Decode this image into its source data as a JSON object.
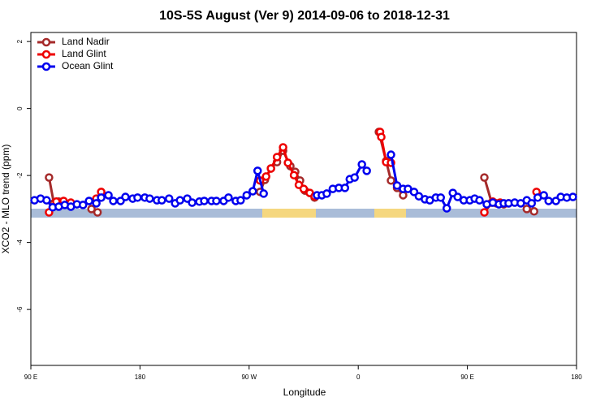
{
  "chart_data": {
    "type": "line",
    "title": "10S-5S August (Ver 9)   2014-09-06 to 2018-12-31",
    "x_label": "Longitude",
    "y_label": "XCO2 - MLO trend (ppm)",
    "xlim": [
      90,
      540
    ],
    "ylim": [
      -7.67,
      2.27
    ],
    "xticks": [
      {
        "value": 90,
        "label": "90 E"
      },
      180,
      {
        "value": 270,
        "label": "90 W"
      },
      {
        "value": 360,
        "label": "0"
      },
      {
        "value": 450,
        "label": "90 E"
      },
      {
        "value": 540,
        "label": "180"
      }
    ],
    "yticks": [
      -6,
      -4,
      -2,
      0,
      2
    ],
    "legend": "top-left",
    "series": [
      {
        "name": "Land Nadir",
        "color": "#a52a2a",
        "x": [
          105,
          109,
          113,
          118,
          123,
          null,
          140,
          145,
          null,
          279,
          283,
          288,
          293,
          298,
          304,
          308,
          312,
          316,
          320,
          324,
          null,
          377,
          383,
          387,
          392,
          397,
          null,
          464,
          470,
          474,
          480,
          null,
          499,
          505
        ],
        "values": [
          -2.06,
          -2.83,
          -2.78,
          -2.83,
          -2.91,
          null,
          -3.0,
          -3.1,
          null,
          -2.49,
          -2.13,
          -1.79,
          -1.6,
          -1.26,
          -1.72,
          -1.89,
          -2.15,
          -2.45,
          -2.52,
          -2.66,
          null,
          -0.7,
          -1.57,
          -2.15,
          -2.37,
          -2.59,
          null,
          -2.06,
          -2.81,
          -2.83,
          -2.86,
          null,
          -3.0,
          -3.07
        ]
      },
      {
        "name": "Land Glint",
        "color": "#ee0000",
        "x": [
          105,
          111,
          117,
          123,
          null,
          144,
          148,
          null,
          279,
          284,
          288,
          293,
          298,
          302,
          307,
          311,
          315,
          320,
          324,
          null,
          378,
          379,
          383,
          387,
          null,
          464,
          471,
          477,
          484,
          null,
          507
        ],
        "values": [
          -3.1,
          -2.78,
          -2.76,
          -2.81,
          null,
          -2.69,
          -2.49,
          null,
          -2.15,
          -2.03,
          -1.79,
          -1.45,
          -1.16,
          -1.62,
          -1.99,
          -2.28,
          -2.4,
          -2.52,
          -2.62,
          null,
          -0.7,
          -0.85,
          -1.6,
          -1.62,
          null,
          -3.1,
          -2.78,
          -2.81,
          -2.83,
          null,
          -2.49
        ]
      },
      {
        "name": "Ocean Glint",
        "color": "#0000ee",
        "x": [
          93,
          98,
          103,
          108,
          113,
          118,
          123,
          128,
          133,
          138,
          144,
          148,
          154,
          158,
          164,
          168,
          174,
          178,
          184,
          188,
          194,
          198,
          204,
          209,
          213,
          219,
          223,
          229,
          233,
          239,
          243,
          249,
          253,
          259,
          263,
          268,
          273,
          277,
          282,
          null,
          326,
          330,
          334,
          339,
          344,
          349,
          353,
          357,
          363,
          367,
          null,
          387,
          392,
          397,
          401,
          406,
          410,
          415,
          419,
          424,
          428,
          433,
          438,
          442,
          447,
          452,
          456,
          460,
          466,
          471,
          476,
          480,
          484,
          489,
          494,
          499,
          503,
          508,
          513,
          517,
          523,
          527,
          532,
          537
        ],
        "values": [
          -2.74,
          -2.69,
          -2.74,
          -2.95,
          -2.93,
          -2.88,
          -2.93,
          -2.86,
          -2.88,
          -2.76,
          -2.83,
          -2.66,
          -2.59,
          -2.76,
          -2.76,
          -2.64,
          -2.69,
          -2.66,
          -2.66,
          -2.69,
          -2.74,
          -2.74,
          -2.69,
          -2.83,
          -2.74,
          -2.69,
          -2.81,
          -2.78,
          -2.76,
          -2.76,
          -2.76,
          -2.76,
          -2.66,
          -2.76,
          -2.74,
          -2.59,
          -2.47,
          -1.86,
          -2.54,
          null,
          -2.59,
          -2.59,
          -2.54,
          -2.4,
          -2.37,
          -2.37,
          -2.11,
          -2.06,
          -1.67,
          -1.86,
          null,
          -1.38,
          -2.3,
          -2.4,
          -2.4,
          -2.49,
          -2.62,
          -2.71,
          -2.74,
          -2.66,
          -2.66,
          -2.98,
          -2.52,
          -2.64,
          -2.74,
          -2.74,
          -2.69,
          -2.74,
          -2.86,
          -2.81,
          -2.86,
          -2.83,
          -2.83,
          -2.81,
          -2.83,
          -2.74,
          -2.83,
          -2.66,
          -2.59,
          -2.76,
          -2.76,
          -2.64,
          -2.66,
          -2.64
        ]
      }
    ]
  }
}
